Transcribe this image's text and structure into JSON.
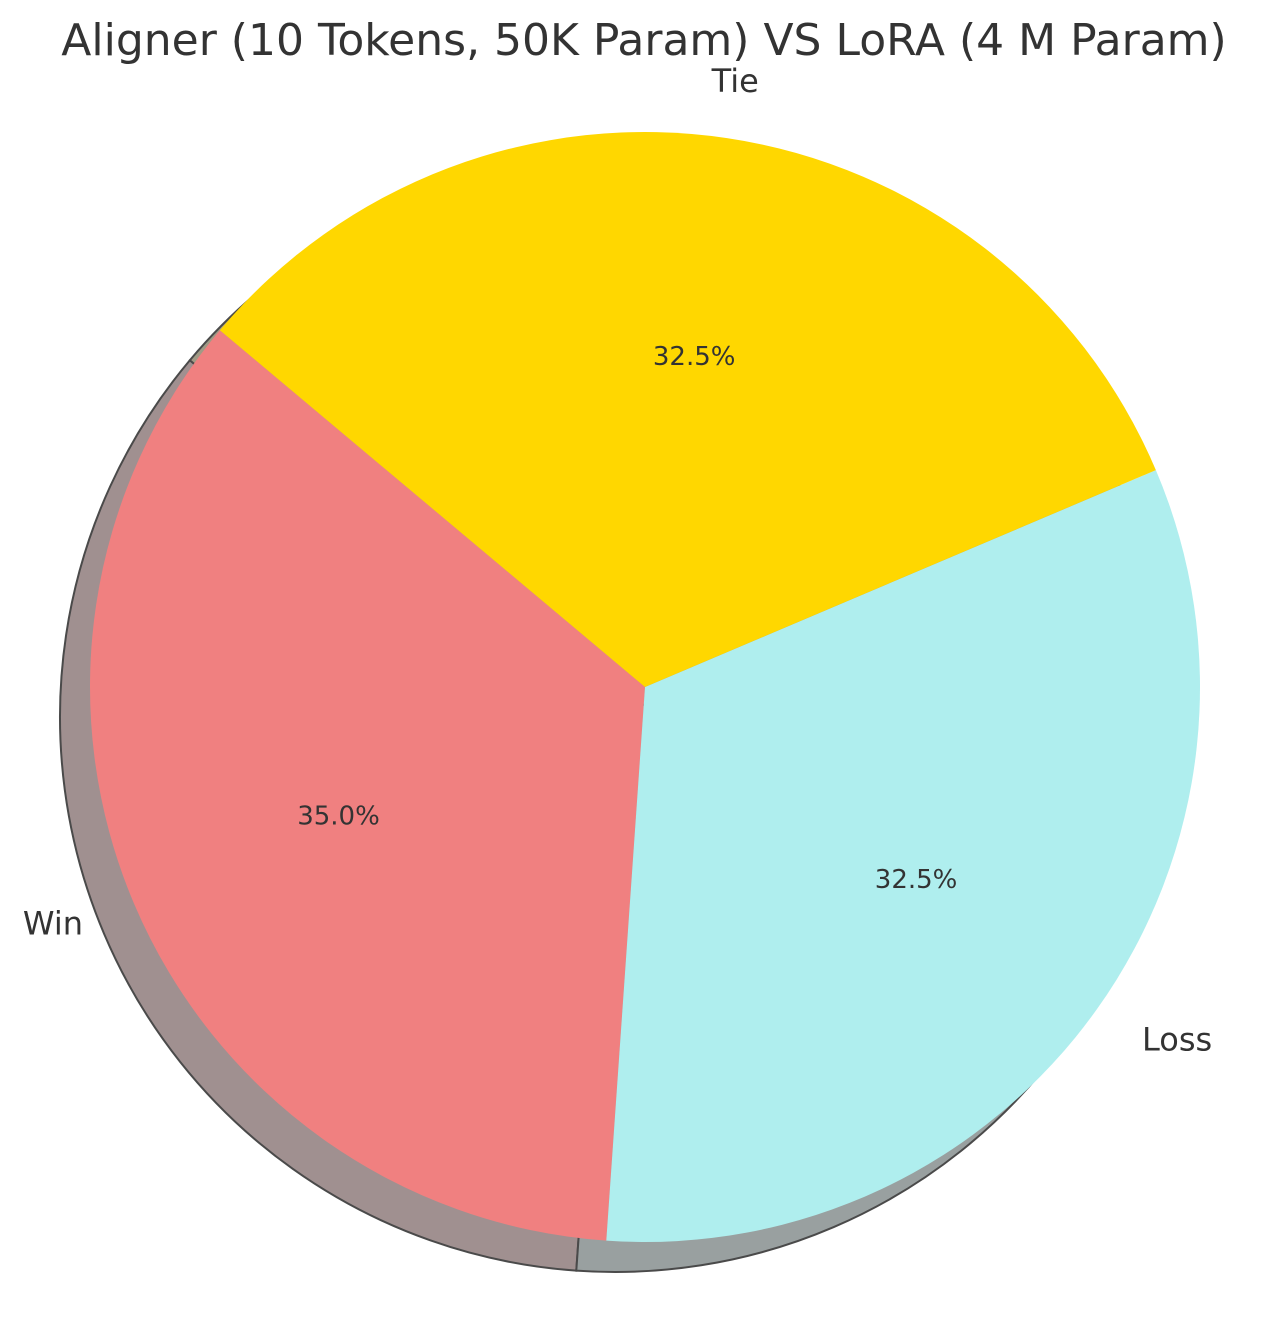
{
  "chart_data": {
    "type": "pie",
    "title": "Aligner (10 Tokens, 50K Param)  VS  LoRA (4 M Param)",
    "categories": [
      "Win",
      "Loss",
      "Tie"
    ],
    "values": [
      35.0,
      32.5,
      32.5
    ],
    "value_labels": [
      "35.0%",
      "32.5%",
      "32.5%"
    ],
    "colors": [
      "#f08080",
      "#afeeee",
      "#ffd700"
    ],
    "start_angle_deg": 140,
    "direction": "counterclockwise",
    "shadow": true,
    "legend": "none"
  }
}
